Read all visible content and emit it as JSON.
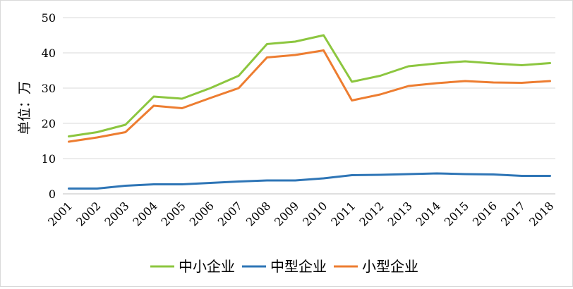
{
  "chart_data": {
    "type": "line",
    "ylabel": "单位：万",
    "x": [
      "2001",
      "2002",
      "2003",
      "2004",
      "2005",
      "2006",
      "2007",
      "2008",
      "2009",
      "2010",
      "2011",
      "2012",
      "2013",
      "2014",
      "2015",
      "2016",
      "2017",
      "2018"
    ],
    "ylim": [
      0,
      50
    ],
    "yticks": [
      0,
      10,
      20,
      30,
      40,
      50
    ],
    "grid": true,
    "legend_position": "bottom",
    "series": [
      {
        "name": "中小企业",
        "color": "#8cc63f",
        "values": [
          16.3,
          17.5,
          19.6,
          27.6,
          27.0,
          30.0,
          33.5,
          42.5,
          43.2,
          45.0,
          31.8,
          33.5,
          36.2,
          37.0,
          37.6,
          37.0,
          36.5,
          37.1
        ]
      },
      {
        "name": "中型企业",
        "color": "#2e75b6",
        "values": [
          1.5,
          1.5,
          2.3,
          2.7,
          2.7,
          3.1,
          3.5,
          3.8,
          3.8,
          4.4,
          5.3,
          5.4,
          5.6,
          5.8,
          5.6,
          5.5,
          5.1,
          5.1
        ]
      },
      {
        "name": "小型企业",
        "color": "#ed7d31",
        "values": [
          14.8,
          16.0,
          17.5,
          25.0,
          24.3,
          27.2,
          30.0,
          38.7,
          39.4,
          40.7,
          26.5,
          28.2,
          30.6,
          31.4,
          32.0,
          31.6,
          31.5,
          32.0
        ]
      }
    ]
  }
}
